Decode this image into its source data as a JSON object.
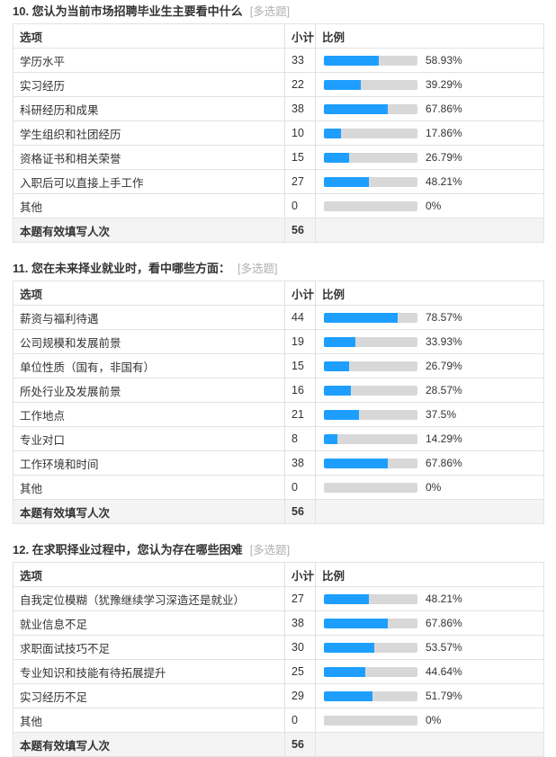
{
  "colors": {
    "bar_fill": "#1e9fff",
    "bar_track": "#d8d8d8",
    "table_border": "#e2e2e2",
    "total_row_bg": "#f4f4f4",
    "text": "#333333",
    "tag_text": "#b0b0b0"
  },
  "columns": {
    "option": "选项",
    "count": "小计",
    "ratio": "比例"
  },
  "questions": [
    {
      "title": "10. 您认为当前市场招聘毕业生主要看中什么",
      "tag": "[多选题]",
      "rows": [
        {
          "label": "学历水平",
          "count": "33",
          "percent": 58.93,
          "percent_label": "58.93%"
        },
        {
          "label": "实习经历",
          "count": "22",
          "percent": 39.29,
          "percent_label": "39.29%"
        },
        {
          "label": "科研经历和成果",
          "count": "38",
          "percent": 67.86,
          "percent_label": "67.86%"
        },
        {
          "label": "学生组织和社团经历",
          "count": "10",
          "percent": 17.86,
          "percent_label": "17.86%"
        },
        {
          "label": "资格证书和相关荣誉",
          "count": "15",
          "percent": 26.79,
          "percent_label": "26.79%"
        },
        {
          "label": "入职后可以直接上手工作",
          "count": "27",
          "percent": 48.21,
          "percent_label": "48.21%"
        },
        {
          "label": "其他",
          "count": "0",
          "percent": 0,
          "percent_label": "0%"
        }
      ],
      "total": {
        "label": "本题有效填写人次",
        "count": "56"
      }
    },
    {
      "title": "11. 您在未来择业就业时，看中哪些方面：",
      "tag": "[多选题]",
      "rows": [
        {
          "label": "薪资与福利待遇",
          "count": "44",
          "percent": 78.57,
          "percent_label": "78.57%"
        },
        {
          "label": "公司规模和发展前景",
          "count": "19",
          "percent": 33.93,
          "percent_label": "33.93%"
        },
        {
          "label": "单位性质（国有，非国有）",
          "count": "15",
          "percent": 26.79,
          "percent_label": "26.79%"
        },
        {
          "label": "所处行业及发展前景",
          "count": "16",
          "percent": 28.57,
          "percent_label": "28.57%"
        },
        {
          "label": "工作地点",
          "count": "21",
          "percent": 37.5,
          "percent_label": "37.5%"
        },
        {
          "label": "专业对口",
          "count": "8",
          "percent": 14.29,
          "percent_label": "14.29%"
        },
        {
          "label": "工作环境和时间",
          "count": "38",
          "percent": 67.86,
          "percent_label": "67.86%"
        },
        {
          "label": "其他",
          "count": "0",
          "percent": 0,
          "percent_label": "0%"
        }
      ],
      "total": {
        "label": "本题有效填写人次",
        "count": "56"
      }
    },
    {
      "title": "12. 在求职择业过程中，您认为存在哪些困难",
      "tag": "[多选题]",
      "rows": [
        {
          "label": "自我定位模糊（犹豫继续学习深造还是就业）",
          "count": "27",
          "percent": 48.21,
          "percent_label": "48.21%"
        },
        {
          "label": "就业信息不足",
          "count": "38",
          "percent": 67.86,
          "percent_label": "67.86%"
        },
        {
          "label": "求职面试技巧不足",
          "count": "30",
          "percent": 53.57,
          "percent_label": "53.57%"
        },
        {
          "label": "专业知识和技能有待拓展提升",
          "count": "25",
          "percent": 44.64,
          "percent_label": "44.64%"
        },
        {
          "label": "实习经历不足",
          "count": "29",
          "percent": 51.79,
          "percent_label": "51.79%"
        },
        {
          "label": "其他",
          "count": "0",
          "percent": 0,
          "percent_label": "0%"
        }
      ],
      "total": {
        "label": "本题有效填写人次",
        "count": "56"
      }
    }
  ]
}
